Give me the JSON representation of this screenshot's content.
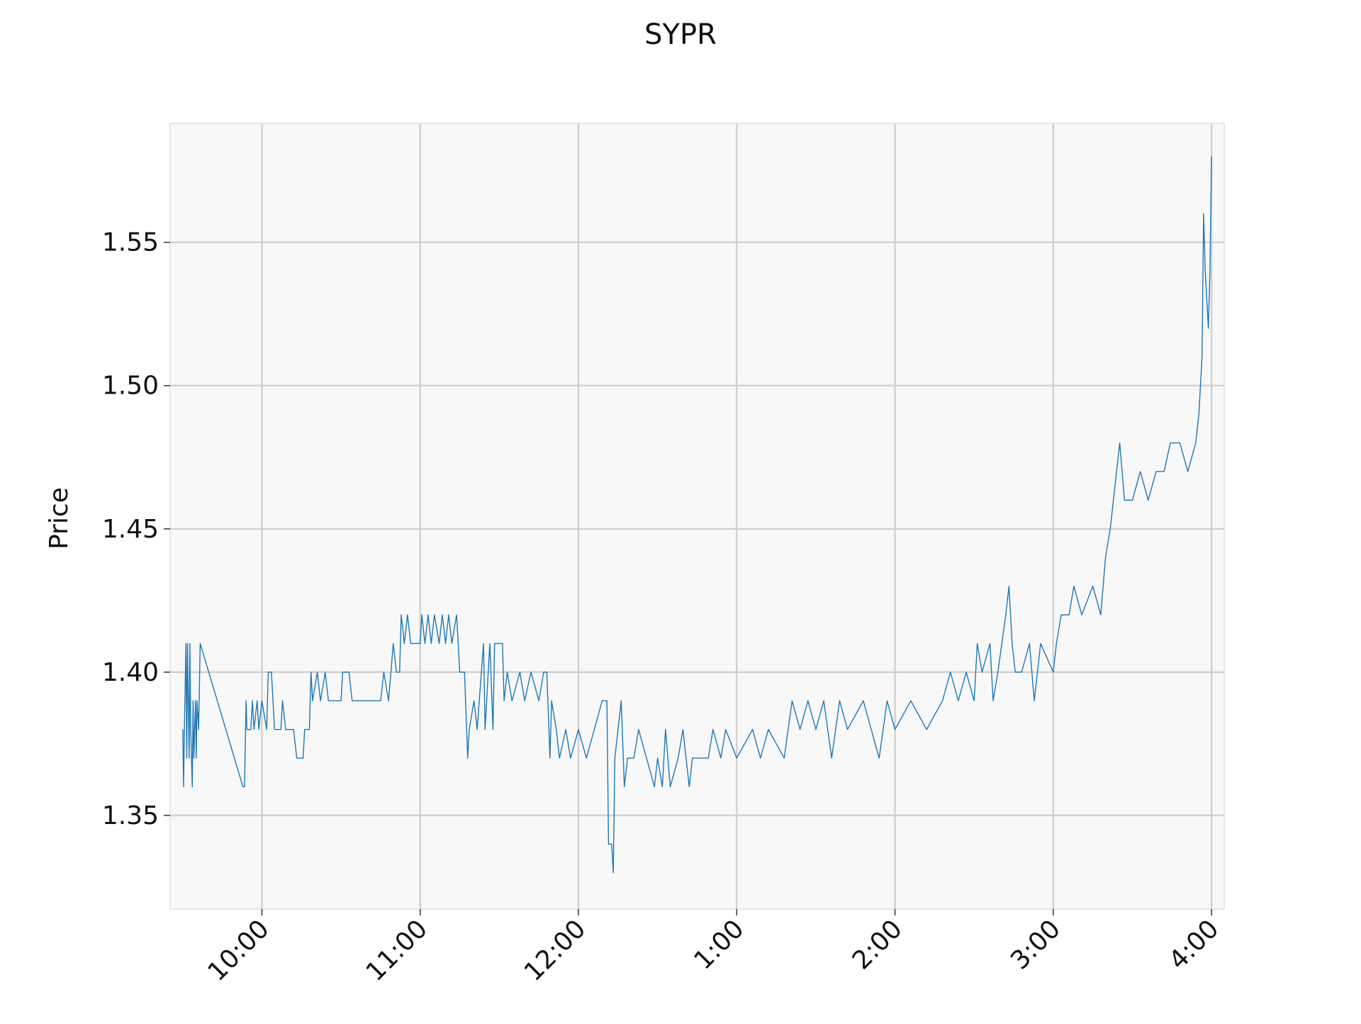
{
  "chart_data": {
    "type": "line",
    "title": "SYPR",
    "y_label": "Price",
    "color": "#1f77b4",
    "grid": true,
    "xlim": [
      9.42,
      16.08
    ],
    "ylim": [
      1.3173,
      1.5915
    ],
    "xticks": [
      {
        "value": 10,
        "label": "10:00"
      },
      {
        "value": 11,
        "label": "11:00"
      },
      {
        "value": 12,
        "label": "12:00"
      },
      {
        "value": 13,
        "label": "1:00"
      },
      {
        "value": 14,
        "label": "2:00"
      },
      {
        "value": 15,
        "label": "3:00"
      },
      {
        "value": 16,
        "label": "4:00"
      }
    ],
    "yticks": [
      {
        "value": 1.35,
        "label": "1.35"
      },
      {
        "value": 1.4,
        "label": "1.40"
      },
      {
        "value": 1.45,
        "label": "1.45"
      },
      {
        "value": 1.5,
        "label": "1.50"
      },
      {
        "value": 1.55,
        "label": "1.55"
      }
    ],
    "x": [
      9.5,
      9.505,
      9.51,
      9.52,
      9.525,
      9.53,
      9.54,
      9.545,
      9.55,
      9.56,
      9.565,
      9.57,
      9.58,
      9.585,
      9.59,
      9.6,
      9.61,
      9.88,
      9.89,
      9.9,
      9.905,
      9.93,
      9.94,
      9.95,
      9.97,
      9.98,
      10.0,
      10.03,
      10.04,
      10.06,
      10.08,
      10.12,
      10.13,
      10.15,
      10.2,
      10.22,
      10.26,
      10.27,
      10.3,
      10.31,
      10.32,
      10.35,
      10.37,
      10.4,
      10.42,
      10.5,
      10.51,
      10.55,
      10.57,
      10.75,
      10.77,
      10.8,
      10.83,
      10.85,
      10.87,
      10.88,
      10.9,
      10.92,
      10.94,
      11.0,
      11.01,
      11.03,
      11.05,
      11.07,
      11.09,
      11.12,
      11.14,
      11.16,
      11.18,
      11.2,
      11.23,
      11.25,
      11.28,
      11.3,
      11.31,
      11.34,
      11.36,
      11.4,
      11.41,
      11.44,
      11.46,
      11.47,
      11.52,
      11.53,
      11.55,
      11.58,
      11.63,
      11.66,
      11.7,
      11.75,
      11.78,
      11.8,
      11.82,
      11.83,
      11.86,
      11.88,
      11.92,
      11.95,
      12.0,
      12.05,
      12.1,
      12.15,
      12.18,
      12.19,
      12.21,
      12.22,
      12.23,
      12.27,
      12.29,
      12.31,
      12.35,
      12.38,
      12.48,
      12.5,
      12.53,
      12.55,
      12.58,
      12.63,
      12.66,
      12.7,
      12.72,
      12.82,
      12.85,
      12.9,
      12.93,
      13.0,
      13.1,
      13.15,
      13.2,
      13.3,
      13.35,
      13.4,
      13.45,
      13.5,
      13.55,
      13.6,
      13.65,
      13.7,
      13.8,
      13.9,
      13.95,
      14.0,
      14.1,
      14.2,
      14.3,
      14.35,
      14.4,
      14.45,
      14.5,
      14.52,
      14.55,
      14.6,
      14.62,
      14.65,
      14.7,
      14.72,
      14.74,
      14.76,
      14.8,
      14.85,
      14.88,
      14.92,
      15.0,
      15.02,
      15.05,
      15.1,
      15.13,
      15.18,
      15.25,
      15.3,
      15.33,
      15.36,
      15.4,
      15.42,
      15.45,
      15.5,
      15.55,
      15.6,
      15.65,
      15.7,
      15.74,
      15.8,
      15.85,
      15.9,
      15.92,
      15.94,
      15.95,
      15.96,
      15.98,
      15.99,
      16.0
    ],
    "values": [
      1.38,
      1.36,
      1.38,
      1.41,
      1.37,
      1.41,
      1.37,
      1.41,
      1.38,
      1.36,
      1.39,
      1.37,
      1.39,
      1.37,
      1.39,
      1.38,
      1.41,
      1.36,
      1.36,
      1.39,
      1.38,
      1.38,
      1.39,
      1.38,
      1.39,
      1.38,
      1.39,
      1.38,
      1.4,
      1.4,
      1.38,
      1.38,
      1.39,
      1.38,
      1.38,
      1.37,
      1.37,
      1.38,
      1.38,
      1.4,
      1.39,
      1.4,
      1.39,
      1.4,
      1.39,
      1.39,
      1.4,
      1.4,
      1.39,
      1.39,
      1.4,
      1.39,
      1.41,
      1.4,
      1.4,
      1.42,
      1.41,
      1.42,
      1.41,
      1.41,
      1.42,
      1.41,
      1.42,
      1.41,
      1.42,
      1.41,
      1.42,
      1.41,
      1.42,
      1.41,
      1.42,
      1.4,
      1.4,
      1.37,
      1.38,
      1.39,
      1.38,
      1.41,
      1.38,
      1.41,
      1.38,
      1.41,
      1.41,
      1.39,
      1.4,
      1.39,
      1.4,
      1.39,
      1.4,
      1.39,
      1.4,
      1.4,
      1.37,
      1.39,
      1.38,
      1.37,
      1.38,
      1.37,
      1.38,
      1.37,
      1.38,
      1.39,
      1.39,
      1.34,
      1.34,
      1.33,
      1.37,
      1.39,
      1.36,
      1.37,
      1.37,
      1.38,
      1.36,
      1.37,
      1.36,
      1.38,
      1.36,
      1.37,
      1.38,
      1.36,
      1.37,
      1.37,
      1.38,
      1.37,
      1.38,
      1.37,
      1.38,
      1.37,
      1.38,
      1.37,
      1.39,
      1.38,
      1.39,
      1.38,
      1.39,
      1.37,
      1.39,
      1.38,
      1.39,
      1.37,
      1.39,
      1.38,
      1.39,
      1.38,
      1.39,
      1.4,
      1.39,
      1.4,
      1.39,
      1.41,
      1.4,
      1.41,
      1.39,
      1.4,
      1.42,
      1.43,
      1.41,
      1.4,
      1.4,
      1.41,
      1.39,
      1.41,
      1.4,
      1.41,
      1.42,
      1.42,
      1.43,
      1.42,
      1.43,
      1.42,
      1.44,
      1.45,
      1.47,
      1.48,
      1.46,
      1.46,
      1.47,
      1.46,
      1.47,
      1.47,
      1.48,
      1.48,
      1.47,
      1.48,
      1.49,
      1.51,
      1.56,
      1.54,
      1.52,
      1.54,
      1.58
    ]
  }
}
